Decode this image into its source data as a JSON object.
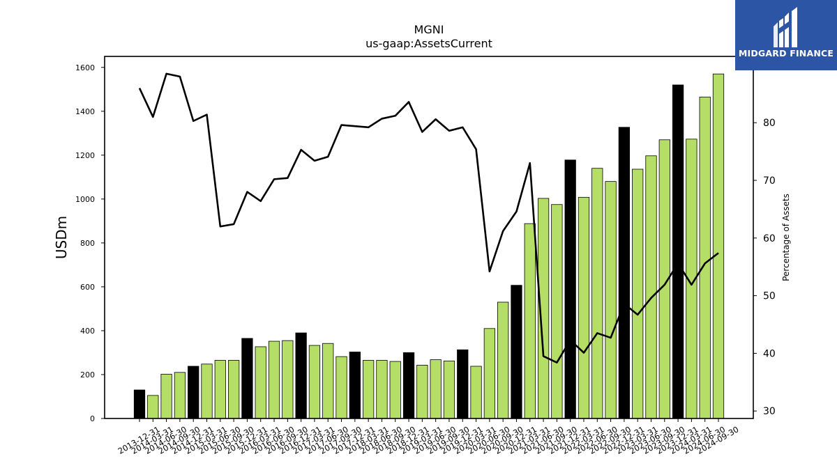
{
  "brand": {
    "name": "MIDGARD FINANCE",
    "logo_icon": "midgard-logo-icon",
    "background_color": "#2d55a6"
  },
  "chart_data": {
    "type": "bar",
    "title": "MGNI",
    "subtitle": "us-gaap:AssetsCurrent",
    "ylabel": "USDm",
    "y2label": "Percentage of Assets",
    "ylim": [
      0,
      1650
    ],
    "y2lim": [
      28.7,
      91.5
    ],
    "yticks": [
      0,
      200,
      400,
      600,
      800,
      1000,
      1200,
      1400,
      1600
    ],
    "y2ticks": [
      30,
      40,
      50,
      60,
      70,
      80
    ],
    "grid": false,
    "bar_colors": {
      "annual": "#000000",
      "quarterly": "#b5de66"
    },
    "categories": [
      "2013-12-31",
      "2014-03-31",
      "2014-06-30",
      "2014-09-30",
      "2014-12-31",
      "2015-03-31",
      "2015-06-30",
      "2015-09-30",
      "2015-12-31",
      "2016-03-31",
      "2016-06-30",
      "2016-09-30",
      "2016-12-31",
      "2017-03-31",
      "2017-06-30",
      "2017-09-30",
      "2017-12-31",
      "2018-03-31",
      "2018-06-30",
      "2018-09-30",
      "2018-12-31",
      "2019-03-31",
      "2019-06-30",
      "2019-09-30",
      "2019-12-31",
      "2020-03-31",
      "2020-06-30",
      "2020-09-30",
      "2020-12-31",
      "2021-03-31",
      "2021-06-30",
      "2021-09-30",
      "2021-12-31",
      "2022-03-31",
      "2022-06-30",
      "2022-09-30",
      "2022-12-31",
      "2023-03-31",
      "2023-06-30",
      "2023-09-30",
      "2023-12-31",
      "2024-03-31",
      "2024-06-30",
      "2024-09-30"
    ],
    "series": [
      {
        "name": "AssetsCurrent",
        "kind": "bar",
        "axis": "left",
        "values": [
          130,
          105,
          202,
          210,
          238,
          248,
          265,
          265,
          365,
          327,
          352,
          355,
          390,
          333,
          342,
          282,
          303,
          265,
          265,
          260,
          300,
          243,
          268,
          262,
          313,
          238,
          410,
          530,
          607,
          888,
          1003,
          975,
          1178,
          1008,
          1140,
          1080,
          1327,
          1136,
          1197,
          1270,
          1520,
          1273,
          1465,
          1570
        ],
        "annual": [
          true,
          false,
          false,
          false,
          true,
          false,
          false,
          false,
          true,
          false,
          false,
          false,
          true,
          false,
          false,
          false,
          true,
          false,
          false,
          false,
          true,
          false,
          false,
          false,
          true,
          false,
          false,
          false,
          true,
          false,
          false,
          false,
          true,
          false,
          false,
          false,
          true,
          false,
          false,
          false,
          true,
          false,
          false,
          false
        ]
      },
      {
        "name": "Percentage of Assets",
        "kind": "line",
        "axis": "right",
        "values": [
          86.0,
          81.0,
          88.5,
          88.0,
          80.3,
          81.4,
          62.0,
          62.4,
          68.0,
          66.4,
          70.2,
          70.4,
          75.3,
          73.4,
          74.1,
          79.6,
          79.4,
          79.2,
          80.7,
          81.2,
          83.6,
          78.4,
          80.6,
          78.6,
          79.2,
          75.4,
          54.2,
          61.2,
          64.6,
          73.0,
          39.5,
          38.4,
          42.3,
          40.1,
          43.5,
          42.7,
          48.6,
          46.7,
          49.6,
          51.9,
          55.6,
          51.9,
          55.6,
          57.4
        ]
      }
    ]
  }
}
